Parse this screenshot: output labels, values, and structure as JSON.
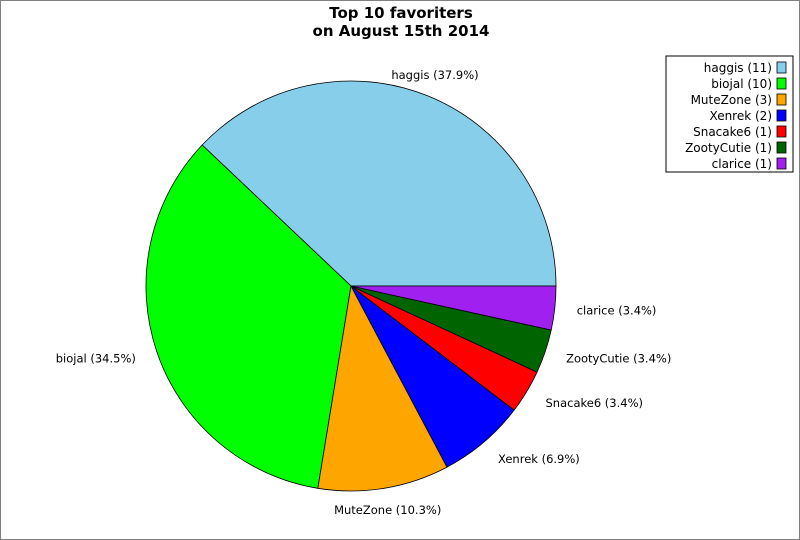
{
  "chart_data": {
    "type": "pie",
    "title_lines": [
      "Top 10 favoriters",
      "on August 15th 2014"
    ],
    "slices": [
      {
        "name": "haggis",
        "value": 11,
        "label": "haggis (37.9%)",
        "legend": "haggis (11)",
        "color": "#87ceeb"
      },
      {
        "name": "biojal",
        "value": 10,
        "label": "biojal (34.5%)",
        "legend": "biojal (10)",
        "color": "#00ff00"
      },
      {
        "name": "MuteZone",
        "value": 3,
        "label": "MuteZone (10.3%)",
        "legend": "MuteZone (3)",
        "color": "#ffa500"
      },
      {
        "name": "Xenrek",
        "value": 2,
        "label": "Xenrek (6.9%)",
        "legend": "Xenrek (2)",
        "color": "#0000ff"
      },
      {
        "name": "Snacake6",
        "value": 1,
        "label": "Snacake6 (3.4%)",
        "legend": "Snacake6 (1)",
        "color": "#ff0000"
      },
      {
        "name": "ZootyCutie",
        "value": 1,
        "label": "ZootyCutie (3.4%)",
        "legend": "ZootyCutie (1)",
        "color": "#006400"
      },
      {
        "name": "clarice",
        "value": 1,
        "label": "clarice (3.4%)",
        "legend": "clarice (1)",
        "color": "#a020f0"
      }
    ],
    "start_angle_deg": 0,
    "direction": "counterclockwise",
    "legend_position": "top-right"
  }
}
